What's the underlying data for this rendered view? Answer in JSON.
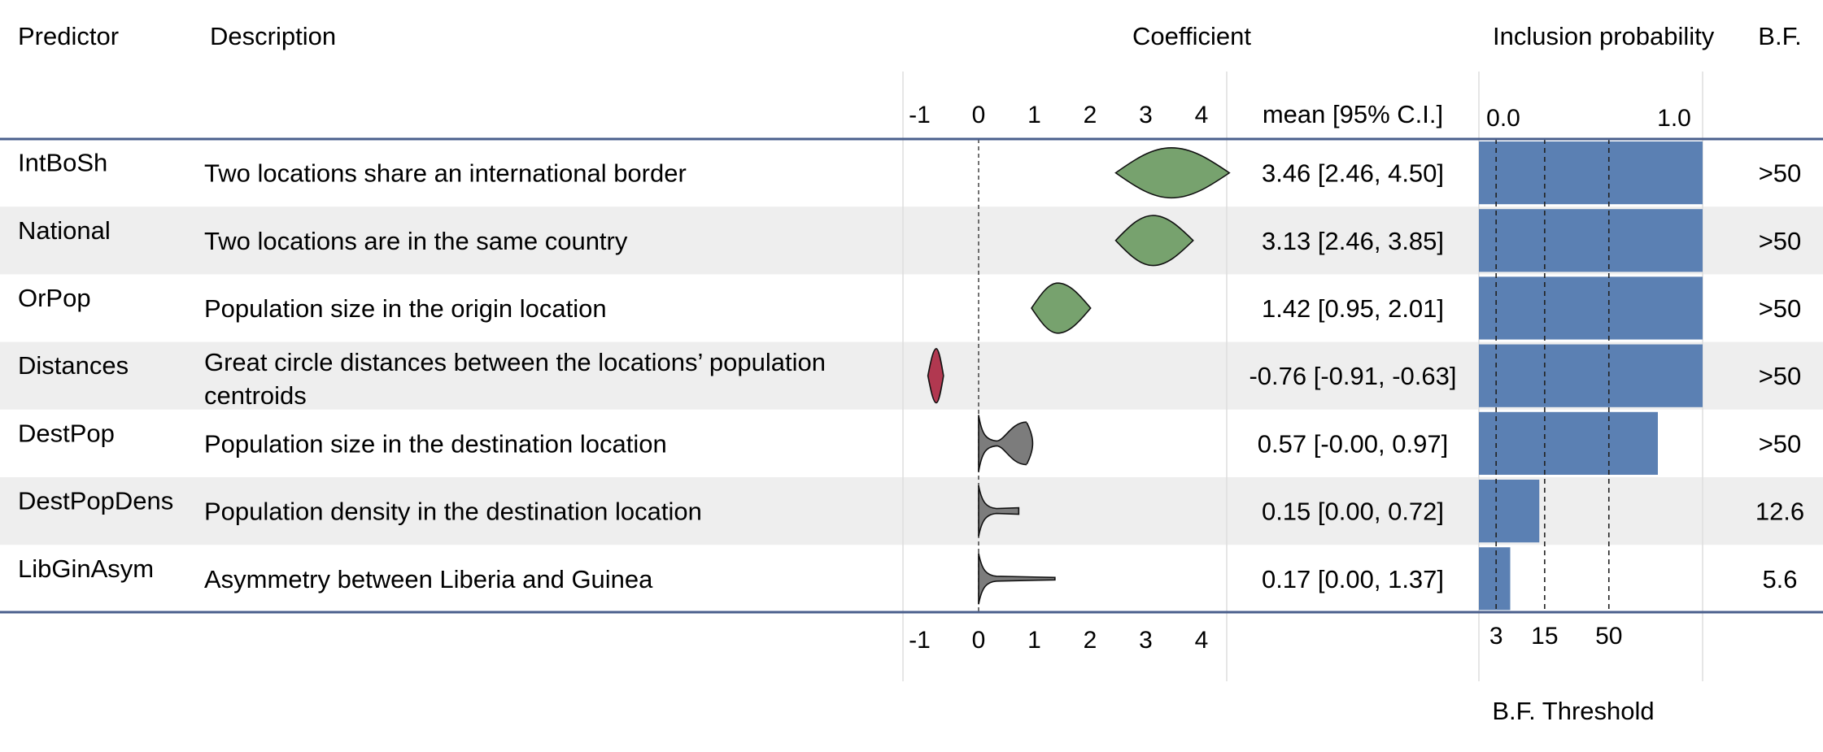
{
  "headers": {
    "predictor": "Predictor",
    "description": "Description",
    "coefficient": "Coefficient",
    "ci_header": "mean [95% C.I.]",
    "inclusion": "Inclusion probability",
    "bf": "B.F.",
    "bf_threshold": "B.F. Threshold"
  },
  "colors": {
    "positive_violin": "#77a26e",
    "negative_violin": "#b13850",
    "uncertain_violin": "#7c7c7c",
    "bar": "#5b80b3",
    "rule": "#4a5f8c",
    "stripe": "#eeeeee"
  },
  "chart_data": {
    "type": "table",
    "coefficient_axis": {
      "ticks": [
        -1,
        0,
        1,
        2,
        3,
        4
      ],
      "tick_labels": [
        "-1",
        "0",
        "1",
        "2",
        "3",
        "4"
      ],
      "range": [
        -1.2,
        4.6
      ]
    },
    "inclusion_axis": {
      "ticks": [
        0.0,
        1.0
      ],
      "tick_labels": [
        "0.0",
        "1.0"
      ],
      "range": [
        0,
        1
      ]
    },
    "bf_thresholds": {
      "values": [
        3,
        15,
        50
      ],
      "labels": [
        "3",
        "15",
        "50"
      ],
      "inclusion_probability": [
        0.077,
        0.294,
        0.581
      ]
    },
    "rows": [
      {
        "predictor": "IntBoSh",
        "description": [
          "Two locations share an international border"
        ],
        "mean": 3.46,
        "lo": 2.46,
        "hi": 4.5,
        "ci_text": "3.46 [2.46, 4.50]",
        "inclusion": 1.0,
        "bf": ">50",
        "violin": "positive"
      },
      {
        "predictor": "National",
        "description": [
          "Two locations are in the same country"
        ],
        "mean": 3.13,
        "lo": 2.46,
        "hi": 3.85,
        "ci_text": "3.13 [2.46, 3.85]",
        "inclusion": 1.0,
        "bf": ">50",
        "violin": "positive"
      },
      {
        "predictor": "OrPop",
        "description": [
          "Population size in the origin location"
        ],
        "mean": 1.42,
        "lo": 0.95,
        "hi": 2.01,
        "ci_text": "1.42 [0.95, 2.01]",
        "inclusion": 1.0,
        "bf": ">50",
        "violin": "positive"
      },
      {
        "predictor": "Distances",
        "description": [
          "Great circle distances between the locations’ population",
          "centroids"
        ],
        "mean": -0.76,
        "lo": -0.91,
        "hi": -0.63,
        "ci_text": "-0.76 [-0.91, -0.63]",
        "inclusion": 1.0,
        "bf": ">50",
        "violin": "negative"
      },
      {
        "predictor": "DestPop",
        "description": [
          "Population size in the destination location"
        ],
        "mean": 0.57,
        "lo": -0.0,
        "hi": 0.97,
        "ci_text": "0.57 [-0.00, 0.97]",
        "inclusion": 0.8,
        "bf": ">50",
        "violin": "uncertain"
      },
      {
        "predictor": "DestPopDens",
        "description": [
          "Population density in the destination location"
        ],
        "mean": 0.15,
        "lo": 0.0,
        "hi": 0.72,
        "ci_text": "0.15 [0.00, 0.72]",
        "inclusion": 0.27,
        "bf": "12.6",
        "violin": "uncertain"
      },
      {
        "predictor": "LibGinAsym",
        "description": [
          "Asymmetry between Liberia and Guinea"
        ],
        "mean": 0.17,
        "lo": 0.0,
        "hi": 1.37,
        "ci_text": "0.17 [0.00, 1.37]",
        "inclusion": 0.14,
        "bf": "5.6",
        "violin": "uncertain"
      }
    ]
  }
}
